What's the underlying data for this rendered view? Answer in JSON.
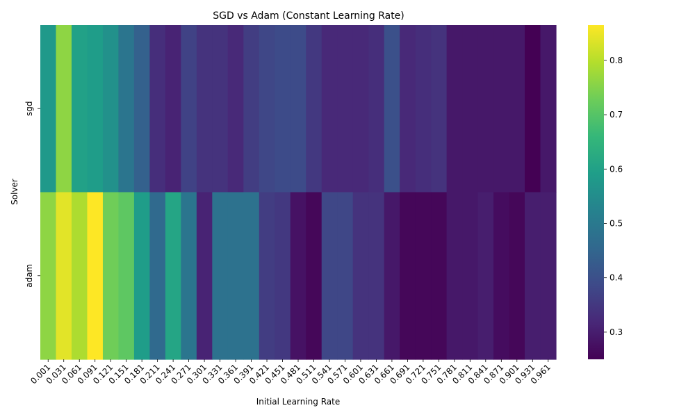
{
  "chart_data": {
    "type": "heatmap",
    "title": "SGD vs Adam (Constant Learning Rate)",
    "xlabel": "Initial Learning Rate",
    "ylabel": "Solver",
    "rows": [
      "sgd",
      "adam"
    ],
    "x": [
      "0.001",
      "0.031",
      "0.061",
      "0.091",
      "0.121",
      "0.151",
      "0.181",
      "0.211",
      "0.241",
      "0.271",
      "0.301",
      "0.331",
      "0.361",
      "0.391",
      "0.421",
      "0.451",
      "0.481",
      "0.511",
      "0.541",
      "0.571",
      "0.601",
      "0.631",
      "0.661",
      "0.691",
      "0.721",
      "0.751",
      "0.781",
      "0.811",
      "0.841",
      "0.871",
      "0.901",
      "0.931",
      "0.961"
    ],
    "values": [
      [
        0.58,
        0.76,
        0.6,
        0.59,
        0.56,
        0.49,
        0.44,
        0.33,
        0.31,
        0.37,
        0.34,
        0.34,
        0.32,
        0.36,
        0.38,
        0.39,
        0.39,
        0.35,
        0.32,
        0.32,
        0.32,
        0.33,
        0.4,
        0.32,
        0.33,
        0.34,
        0.29,
        0.29,
        0.29,
        0.29,
        0.29,
        0.25,
        0.29
      ],
      [
        0.76,
        0.84,
        0.79,
        0.87,
        0.73,
        0.71,
        0.59,
        0.46,
        0.61,
        0.49,
        0.31,
        0.48,
        0.48,
        0.48,
        0.36,
        0.35,
        0.28,
        0.26,
        0.38,
        0.38,
        0.34,
        0.34,
        0.29,
        0.26,
        0.26,
        0.26,
        0.29,
        0.29,
        0.3,
        0.27,
        0.26,
        0.3,
        0.3
      ]
    ],
    "colormap": "viridis",
    "colorbar": {
      "min": 0.25,
      "max": 0.865,
      "ticks": [
        0.3,
        0.4,
        0.5,
        0.6,
        0.7,
        0.8
      ]
    }
  }
}
